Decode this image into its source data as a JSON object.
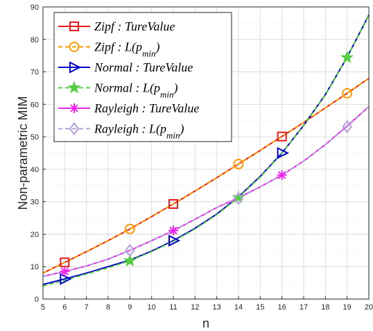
{
  "chart_data": {
    "type": "line",
    "title": "",
    "xlabel": "n",
    "ylabel": "Non-parametric MIM",
    "xlim": [
      5,
      20
    ],
    "ylim": [
      0,
      90
    ],
    "xticks": [
      "5",
      "6",
      "7",
      "8",
      "9",
      "10",
      "11",
      "12",
      "13",
      "14",
      "15",
      "16",
      "17",
      "18",
      "19",
      "20"
    ],
    "yticks": [
      "0",
      "10",
      "20",
      "30",
      "40",
      "50",
      "60",
      "70",
      "80",
      "90"
    ],
    "grid": true,
    "legend_position": "top-left",
    "series": [
      {
        "name": "Zipf : TureValue",
        "color": "#e41a1c",
        "dash": "solid",
        "marker": "square",
        "marker_x": [
          6,
          11,
          16
        ],
        "x": [
          5,
          6,
          7,
          8,
          9,
          10,
          11,
          12,
          13,
          14,
          15,
          16,
          17,
          18,
          19,
          20
        ],
        "y": [
          8.0,
          11.3,
          14.6,
          18.0,
          21.6,
          25.4,
          29.3,
          33.3,
          37.4,
          41.6,
          45.8,
          50.1,
          54.4,
          58.9,
          63.4,
          68.0
        ]
      },
      {
        "name": "Zipf : L(p_min)",
        "color": "#ff9900",
        "dash": "dashed",
        "marker": "circle",
        "marker_x": [
          9,
          14,
          19
        ],
        "x": [
          5,
          6,
          7,
          8,
          9,
          10,
          11,
          12,
          13,
          14,
          15,
          16,
          17,
          18,
          19,
          20
        ],
        "y": [
          8.0,
          11.3,
          14.6,
          18.0,
          21.6,
          25.4,
          29.3,
          33.3,
          37.4,
          41.6,
          45.8,
          50.1,
          54.4,
          58.9,
          63.4,
          68.0
        ]
      },
      {
        "name": "Normal : TureValue",
        "color": "#0000cc",
        "dash": "solid",
        "marker": "triangle-right",
        "marker_x": [
          6,
          11,
          16
        ],
        "x": [
          5,
          6,
          7,
          8,
          9,
          10,
          11,
          12,
          13,
          14,
          15,
          16,
          17,
          18,
          19,
          20
        ],
        "y": [
          4.5,
          6.2,
          8.0,
          10.0,
          12.0,
          14.8,
          18.0,
          21.8,
          26.2,
          31.5,
          37.8,
          45.0,
          53.5,
          63.0,
          74.5,
          87.5
        ]
      },
      {
        "name": "Normal : L(p_min)",
        "color": "#55cc44",
        "dash": "dashed",
        "marker": "star",
        "marker_x": [
          9,
          14,
          19
        ],
        "x": [
          5,
          6,
          7,
          8,
          9,
          10,
          11,
          12,
          13,
          14,
          15,
          16,
          17,
          18,
          19,
          20
        ],
        "y": [
          4.0,
          5.8,
          7.7,
          9.6,
          11.8,
          14.6,
          17.8,
          21.6,
          26.0,
          31.3,
          37.6,
          44.9,
          53.4,
          62.9,
          74.4,
          87.4
        ]
      },
      {
        "name": "Rayleigh : TureValue",
        "color": "#ee22ee",
        "dash": "solid",
        "marker": "asterisk",
        "marker_x": [
          6,
          11,
          16
        ],
        "x": [
          5,
          6,
          7,
          8,
          9,
          10,
          11,
          12,
          13,
          14,
          15,
          16,
          17,
          18,
          19,
          20
        ],
        "y": [
          7.0,
          8.5,
          10.2,
          12.3,
          15.0,
          18.0,
          21.1,
          24.6,
          28.2,
          31.2,
          34.6,
          38.2,
          42.5,
          47.6,
          53.3,
          59.3
        ]
      },
      {
        "name": "Rayleigh : L(p_min)",
        "color": "#b4a0dc",
        "dash": "dashed",
        "marker": "diamond",
        "marker_x": [
          9,
          14,
          19
        ],
        "x": [
          5,
          6,
          7,
          8,
          9,
          10,
          11,
          12,
          13,
          14,
          15,
          16,
          17,
          18,
          19,
          20
        ],
        "y": [
          7.0,
          8.5,
          10.2,
          12.3,
          15.0,
          18.0,
          21.1,
          24.6,
          28.2,
          31.0,
          34.6,
          38.2,
          42.5,
          47.6,
          53.1,
          59.3
        ]
      }
    ]
  },
  "legend_entries": [
    {
      "label_main": "Zipf : TureValue",
      "label_sub": ""
    },
    {
      "label_main": "Zipf : L(p",
      "label_sub": "min",
      "label_tail": ")"
    },
    {
      "label_main": "Normal : TureValue",
      "label_sub": ""
    },
    {
      "label_main": "Normal : L(p",
      "label_sub": "min",
      "label_tail": ")"
    },
    {
      "label_main": "Rayleigh : TureValue",
      "label_sub": ""
    },
    {
      "label_main": "Rayleigh : L(p",
      "label_sub": "min",
      "label_tail": ")"
    }
  ]
}
